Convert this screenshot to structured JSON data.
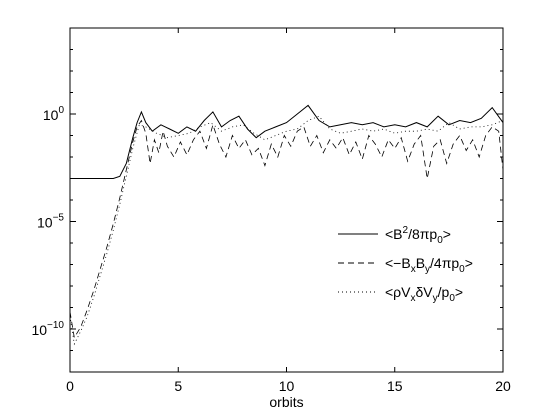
{
  "chart_data": {
    "type": "line",
    "title": "",
    "xlabel": "orbits",
    "ylabel": "",
    "xlim": [
      0,
      20
    ],
    "ylim": [
      -12,
      4
    ],
    "y_scale": "log10",
    "x_ticks": [
      0,
      5,
      10,
      15,
      20
    ],
    "x_tick_labels": [
      "0",
      "5",
      "10",
      "15",
      "20"
    ],
    "y_ticks": [
      0,
      -5,
      -10
    ],
    "y_tick_labels": [
      {
        "base": "10",
        "exp": "0"
      },
      {
        "base": "10",
        "exp": "−5"
      },
      {
        "base": "10",
        "exp": "−10"
      }
    ],
    "grid": false,
    "legend_position": "lower-right",
    "legend": [
      {
        "style": "solid",
        "parts": [
          [
            "n",
            "<B"
          ],
          [
            "sup",
            "2"
          ],
          [
            "n",
            "/8πp"
          ],
          [
            "sub",
            "0"
          ],
          [
            "n",
            ">"
          ]
        ]
      },
      {
        "style": "dashed",
        "parts": [
          [
            "n",
            "<−B"
          ],
          [
            "sub",
            "x"
          ],
          [
            "n",
            "B"
          ],
          [
            "sub",
            "y"
          ],
          [
            "n",
            "/4πp"
          ],
          [
            "sub",
            "0"
          ],
          [
            "n",
            ">"
          ]
        ]
      },
      {
        "style": "dotted",
        "parts": [
          [
            "n",
            "<ρV"
          ],
          [
            "sub",
            "x"
          ],
          [
            "n",
            "δV"
          ],
          [
            "sub",
            "y"
          ],
          [
            "n",
            "/p"
          ],
          [
            "sub",
            "0"
          ],
          [
            "n",
            ">"
          ]
        ]
      }
    ],
    "series": [
      {
        "style": "solid",
        "x": [
          0,
          0.5,
          1.0,
          1.5,
          2.0,
          2.3,
          2.6,
          2.9,
          3.1,
          3.3,
          3.5,
          3.8,
          4.2,
          4.6,
          5.0,
          5.4,
          5.8,
          6.2,
          6.6,
          7.0,
          7.4,
          7.8,
          8.2,
          8.6,
          9.0,
          9.5,
          10.0,
          10.5,
          11.0,
          11.5,
          12.0,
          12.5,
          13.0,
          13.5,
          14.0,
          14.5,
          15.0,
          15.5,
          16.0,
          16.5,
          17.0,
          17.5,
          18.0,
          18.5,
          19.0,
          19.5,
          20.0
        ],
        "y_log10": [
          -3.0,
          -3.0,
          -3.0,
          -3.0,
          -3.0,
          -2.9,
          -2.3,
          -1.1,
          -0.4,
          0.1,
          -0.4,
          -0.8,
          -0.5,
          -0.7,
          -0.9,
          -0.6,
          -0.8,
          -0.3,
          0.1,
          -0.6,
          -0.3,
          -0.1,
          -0.7,
          -1.1,
          -0.8,
          -0.6,
          -0.4,
          0.0,
          0.4,
          -0.3,
          -0.6,
          -0.5,
          -0.4,
          -0.5,
          -0.4,
          -0.6,
          -0.5,
          -0.6,
          -0.4,
          -0.6,
          -0.1,
          -0.5,
          -0.3,
          -0.4,
          -0.2,
          0.3,
          -0.4
        ]
      },
      {
        "style": "dashed",
        "x": [
          0,
          0.2,
          0.5,
          0.8,
          1.1,
          1.4,
          1.7,
          2.0,
          2.3,
          2.6,
          2.9,
          3.1,
          3.3,
          3.5,
          3.7,
          3.9,
          4.1,
          4.3,
          4.5,
          4.8,
          5.1,
          5.4,
          5.7,
          6.0,
          6.3,
          6.6,
          6.9,
          7.2,
          7.5,
          7.8,
          8.1,
          8.4,
          8.7,
          9.0,
          9.3,
          9.6,
          9.9,
          10.2,
          10.5,
          10.8,
          11.1,
          11.4,
          11.7,
          12.0,
          12.3,
          12.6,
          12.9,
          13.2,
          13.5,
          13.8,
          14.1,
          14.4,
          14.7,
          15.0,
          15.3,
          15.6,
          15.9,
          16.2,
          16.5,
          16.8,
          17.1,
          17.4,
          17.7,
          18.0,
          18.3,
          18.6,
          18.9,
          19.2,
          19.5,
          19.8,
          20.0
        ],
        "y_log10": [
          -9.2,
          -10.4,
          -9.9,
          -9.1,
          -8.2,
          -7.2,
          -6.2,
          -5.1,
          -3.9,
          -2.6,
          -1.3,
          -0.6,
          -0.3,
          -0.9,
          -2.3,
          -1.2,
          -1.8,
          -0.8,
          -1.5,
          -2.0,
          -1.3,
          -1.9,
          -1.2,
          -0.8,
          -1.6,
          -0.5,
          -1.4,
          -2.0,
          -1.0,
          -1.6,
          -1.2,
          -1.9,
          -1.6,
          -2.4,
          -1.4,
          -2.0,
          -1.0,
          -1.5,
          -0.8,
          -0.6,
          -1.5,
          -1.0,
          -1.8,
          -1.2,
          -1.6,
          -1.1,
          -1.9,
          -1.3,
          -2.1,
          -1.0,
          -1.4,
          -2.0,
          -1.2,
          -1.6,
          -1.1,
          -2.2,
          -1.4,
          -1.0,
          -3.0,
          -1.5,
          -1.2,
          -2.3,
          -1.4,
          -1.0,
          -1.7,
          -1.2,
          -2.0,
          -1.0,
          -0.6,
          -0.8,
          -2.6
        ]
      },
      {
        "style": "dotted",
        "x": [
          0,
          0.2,
          0.5,
          0.8,
          1.1,
          1.4,
          1.7,
          2.0,
          2.3,
          2.6,
          2.9,
          3.2,
          3.5,
          4.0,
          4.5,
          5.0,
          5.5,
          6.0,
          6.5,
          7.0,
          7.5,
          8.0,
          8.5,
          9.0,
          9.5,
          10.0,
          10.5,
          11.0,
          11.5,
          12.0,
          12.5,
          13.0,
          13.5,
          14.0,
          14.5,
          15.0,
          15.5,
          16.0,
          16.5,
          17.0,
          17.5,
          18.0,
          18.5,
          19.0,
          19.5,
          20.0
        ],
        "y_log10": [
          -9.4,
          -10.7,
          -10.1,
          -9.4,
          -8.5,
          -7.5,
          -6.5,
          -5.4,
          -4.2,
          -2.9,
          -1.6,
          -0.5,
          -0.6,
          -0.9,
          -1.1,
          -1.0,
          -0.9,
          -0.6,
          -0.4,
          -0.8,
          -0.6,
          -0.5,
          -0.9,
          -1.2,
          -1.0,
          -0.8,
          -0.7,
          -0.3,
          -0.1,
          -0.7,
          -0.9,
          -0.8,
          -0.7,
          -0.8,
          -0.7,
          -0.9,
          -0.8,
          -0.8,
          -0.7,
          -0.8,
          -0.4,
          -0.7,
          -0.6,
          -0.6,
          -0.5,
          -0.3
        ]
      }
    ]
  }
}
